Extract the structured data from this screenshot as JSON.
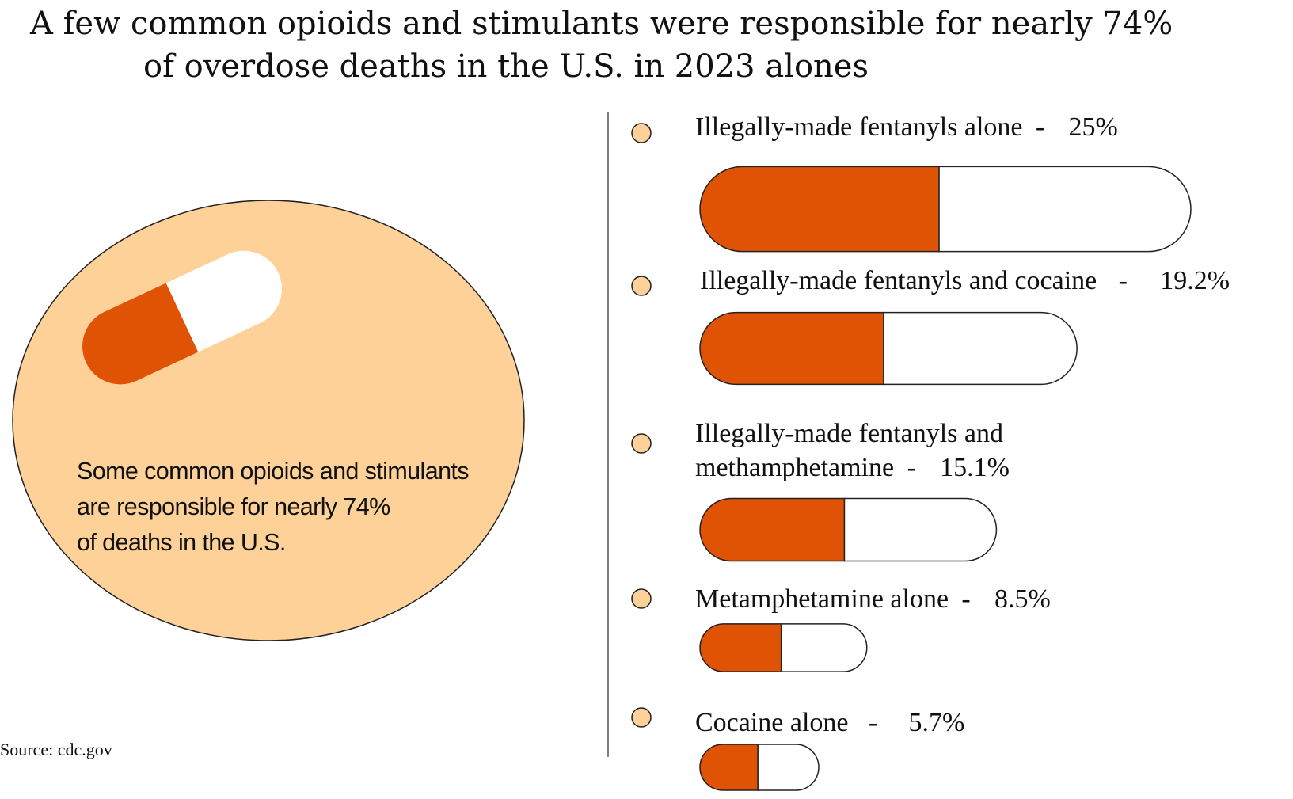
{
  "title": {
    "line1": "A few common opioids and stimulants were responsible for nearly 74%",
    "line2": "of overdose deaths in the U.S. in 2023 alones"
  },
  "callout": {
    "line1": "Some common opioids and stimulants",
    "line2": "are responsible for nearly 74%",
    "line3": "of deaths in the U.S."
  },
  "source": "Source: cdc.gov",
  "colors": {
    "circle": "#FDD198",
    "bullet": "#FDD198",
    "pill_fill": "#E05305",
    "pill_empty": "#FFFFFF",
    "outline": "#222222"
  },
  "chart_data": {
    "type": "bar",
    "unit": "%",
    "items": [
      {
        "name": "Illegally-made fentanyls alone",
        "value": 25,
        "value_label": "25%"
      },
      {
        "name": "Illegally-made fentanyls and cocaine",
        "value": 19.2,
        "value_label": "19.2%"
      },
      {
        "name": "Illegally-made fentanyls and methamphetamine",
        "name_line1": "Illegally-made fentanyls and",
        "name_line2": "methamphetamine",
        "value": 15.1,
        "value_label": "15.1%"
      },
      {
        "name": "Metamphetamine alone",
        "value": 8.5,
        "value_label": "8.5%"
      },
      {
        "name": "Cocaine alone",
        "value": 5.7,
        "value_label": "5.7%"
      }
    ],
    "total_label": "74%"
  }
}
